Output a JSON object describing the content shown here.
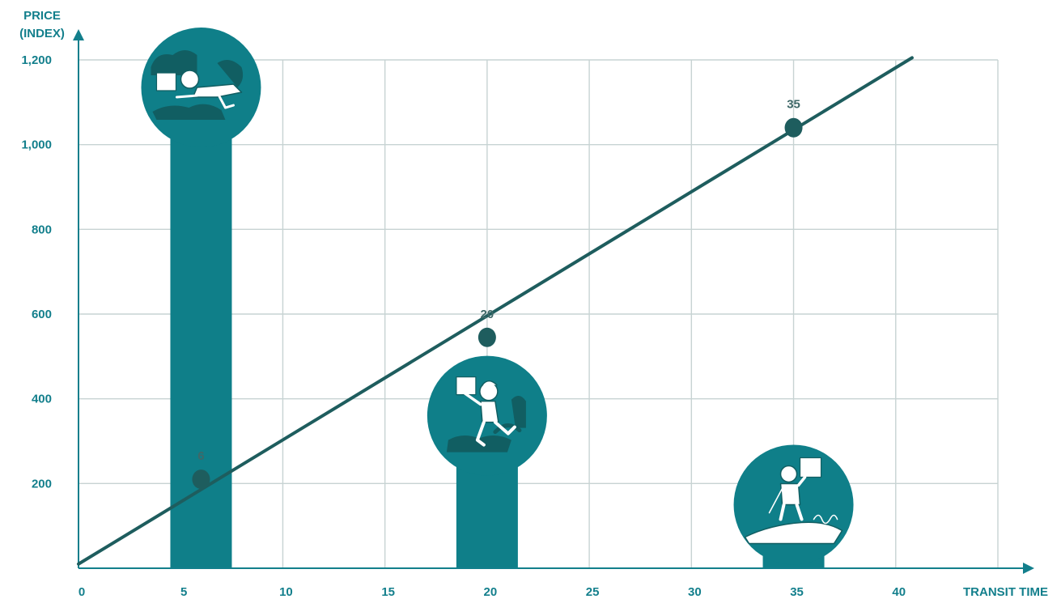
{
  "colors": {
    "axis_text": "#137f8c",
    "grid": "#c7d3d3",
    "axis": "#137f8c",
    "bar": "#0f7f89",
    "line": "#1e5d5e",
    "point_label": "#3f6868",
    "icon_stroke": "#ffffff",
    "icon_dark": "#115e62"
  },
  "chart_data": {
    "type": "bar+line",
    "y_axis_title_lines": [
      "PRICE",
      "(INDEX)"
    ],
    "x_axis_title": "TRANSIT TIME",
    "xlim": [
      0,
      45
    ],
    "ylim": [
      0,
      1200
    ],
    "x_ticks": [
      0,
      5,
      10,
      15,
      20,
      25,
      30,
      35,
      40
    ],
    "x_tick_labels": [
      "0",
      "5",
      "10",
      "15",
      "20",
      "25",
      "30",
      "35",
      "40"
    ],
    "y_ticks": [
      200,
      400,
      600,
      800,
      1000,
      1200
    ],
    "y_tick_labels": [
      "200",
      "400",
      "600",
      "800",
      "1,000",
      "1,200"
    ],
    "grid": true,
    "bars": [
      {
        "x": 6,
        "value": 1135,
        "icon": "flying-courier-icon"
      },
      {
        "x": 20,
        "value": 360,
        "icon": "running-courier-icon"
      },
      {
        "x": 35,
        "value": 150,
        "icon": "surfing-courier-icon"
      }
    ],
    "line": {
      "x": [
        0,
        40.8
      ],
      "y": [
        10,
        1205
      ]
    },
    "points": [
      {
        "x": 6,
        "y": 210,
        "label": "6"
      },
      {
        "x": 20,
        "y": 545,
        "label": "20"
      },
      {
        "x": 35,
        "y": 1040,
        "label": "35"
      }
    ]
  }
}
